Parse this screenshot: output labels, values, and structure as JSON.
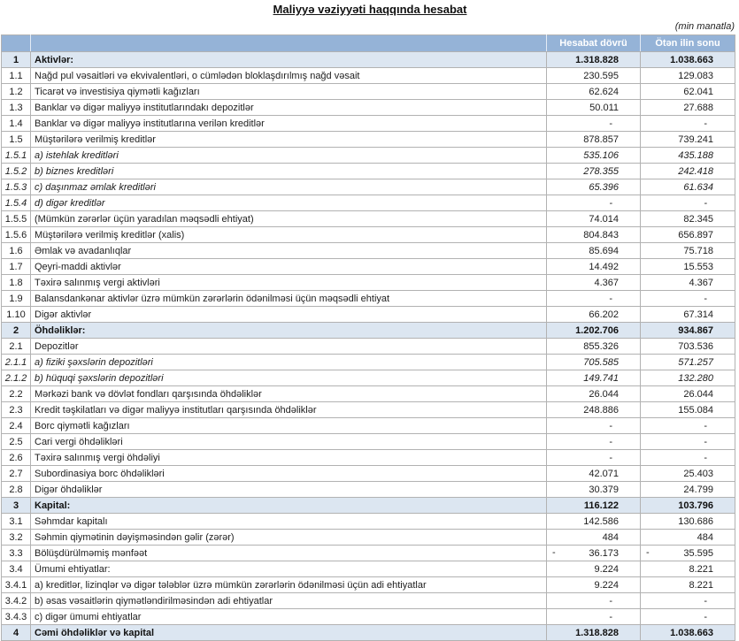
{
  "title": "Maliyyə vəziyyəti haqqında hesabat",
  "units_note": "(min manatla)",
  "colors": {
    "header_bg": "#95B3D7",
    "header_text": "#FFFFFF",
    "section_row_bg": "#DCE6F1",
    "grid_border": "#B2B2B2"
  },
  "table": {
    "columns": {
      "num_header": "",
      "label_header": "",
      "current": "Hesabat dövrü",
      "previous": "Ötən ilin sonu"
    },
    "rows": [
      {
        "num": "1",
        "label": "Aktivlər:",
        "current": "1.318.828",
        "previous": "1.038.663",
        "style": "section"
      },
      {
        "num": "1.1",
        "label": "Nağd pul vəsaitləri və  ekvivalentləri, o cümlədən bloklaşdırılmış nağd vəsait",
        "current": "230.595",
        "previous": "129.083",
        "style": "normal"
      },
      {
        "num": "1.2",
        "label": "Ticarət və investisiya qiymətli kağızları",
        "current": "62.624",
        "previous": "62.041",
        "style": "normal"
      },
      {
        "num": "1.3",
        "label": "Banklar və digər maliyyə institutlarındakı depozitlər",
        "current": "50.011",
        "previous": "27.688",
        "style": "normal"
      },
      {
        "num": "1.4",
        "label": "Banklar və digər maliyyə institutlarına verilən kreditlər",
        "current": "-",
        "previous": "-",
        "style": "normal"
      },
      {
        "num": "1.5",
        "label": "Müştərilərə verilmiş kreditlər",
        "current": "878.857",
        "previous": "739.241",
        "style": "normal"
      },
      {
        "num": "1.5.1",
        "label": "a) istehlak kreditləri",
        "current": "535.106",
        "previous": "435.188",
        "style": "italic"
      },
      {
        "num": "1.5.2",
        "label": "b) biznes kreditləri",
        "current": "278.355",
        "previous": "242.418",
        "style": "italic"
      },
      {
        "num": "1.5.3",
        "label": "c) daşınmaz əmlak kreditləri",
        "current": "65.396",
        "previous": "61.634",
        "style": "italic"
      },
      {
        "num": "1.5.4",
        "label": "d) digər kreditlər",
        "current": "-",
        "previous": "-",
        "style": "italic"
      },
      {
        "num": "1.5.5",
        "label": "(Mümkün zərərlər üçün yaradılan məqsədli ehtiyat)",
        "current": "74.014",
        "previous": "82.345",
        "style": "normal"
      },
      {
        "num": "1.5.6",
        "label": "Müştərilərə verilmiş kreditlər (xalis)",
        "current": "804.843",
        "previous": "656.897",
        "style": "normal"
      },
      {
        "num": "1.6",
        "label": "Əmlak və avadanlıqlar",
        "current": "85.694",
        "previous": "75.718",
        "style": "normal"
      },
      {
        "num": "1.7",
        "label": "Qeyri-maddi aktivlər",
        "current": "14.492",
        "previous": "15.553",
        "style": "normal"
      },
      {
        "num": "1.8",
        "label": "Təxirə salınmış vergi aktivləri",
        "current": "4.367",
        "previous": "4.367",
        "style": "normal"
      },
      {
        "num": "1.9",
        "label": "Balansdankənar aktivlər üzrə mümkün zərərlərin ödənilməsi üçün məqsədli ehtiyat",
        "current": "-",
        "previous": "-",
        "style": "normal"
      },
      {
        "num": "1.10",
        "label": "Digər aktivlər",
        "current": "66.202",
        "previous": "67.314",
        "style": "normal"
      },
      {
        "num": "2",
        "label": "Öhdəliklər:",
        "current": "1.202.706",
        "previous": "934.867",
        "style": "section"
      },
      {
        "num": "2.1",
        "label": "Depozitlər",
        "current": "855.326",
        "previous": "703.536",
        "style": "normal"
      },
      {
        "num": "2.1.1",
        "label": "a) fiziki şəxslərin depozitləri",
        "current": "705.585",
        "previous": "571.257",
        "style": "italic"
      },
      {
        "num": "2.1.2",
        "label": "b) hüquqi şəxslərin depozitləri",
        "current": "149.741",
        "previous": "132.280",
        "style": "italic"
      },
      {
        "num": "2.2",
        "label": "Mərkəzi bank və dövlət fondları qarşısında öhdəliklər",
        "current": "26.044",
        "previous": "26.044",
        "style": "normal"
      },
      {
        "num": "2.3",
        "label": "Kredit təşkilatları və digər maliyyə institutları qarşısında öhdəliklər",
        "current": "248.886",
        "previous": "155.084",
        "style": "normal"
      },
      {
        "num": "2.4",
        "label": "Borc qiymətli kağızları",
        "current": "-",
        "previous": "-",
        "style": "normal"
      },
      {
        "num": "2.5",
        "label": "Cari vergi öhdəlikləri",
        "current": "-",
        "previous": "-",
        "style": "normal"
      },
      {
        "num": "2.6",
        "label": "Təxirə salınmış vergi öhdəliyi",
        "current": "-",
        "previous": "-",
        "style": "normal"
      },
      {
        "num": "2.7",
        "label": "Subordinasiya borc öhdəlikləri",
        "current": "42.071",
        "previous": "25.403",
        "style": "normal"
      },
      {
        "num": "2.8",
        "label": "Digər öhdəliklər",
        "current": "30.379",
        "previous": "24.799",
        "style": "normal"
      },
      {
        "num": "3",
        "label": "Kapital:",
        "current": "116.122",
        "previous": "103.796",
        "style": "section"
      },
      {
        "num": "3.1",
        "label": "Səhmdar kapitalı",
        "current": "142.586",
        "previous": "130.686",
        "style": "normal"
      },
      {
        "num": "3.2",
        "label": "Səhmin qiymətinin dəyişməsindən gəlir (zərər)",
        "current": "484",
        "previous": "484",
        "style": "normal"
      },
      {
        "num": "3.3",
        "label": "Bölüşdürülməmiş mənfəət",
        "current": {
          "sign": "-",
          "amount": "36.173"
        },
        "previous": {
          "sign": "-",
          "amount": "35.595"
        },
        "style": "normal"
      },
      {
        "num": "3.4",
        "label": "Ümumi ehtiyatlar:",
        "current": "9.224",
        "previous": "8.221",
        "style": "normal"
      },
      {
        "num": "3.4.1",
        "label": "a) kreditlər, lizinqlər və digər tələblər üzrə mümkün zərərlərin ödənilməsi üçün adi ehtiyatlar",
        "current": "9.224",
        "previous": "8.221",
        "style": "normal"
      },
      {
        "num": "3.4.2",
        "label": "b) əsas vəsaitlərin qiymətləndirilməsindən adi ehtiyatlar",
        "current": "-",
        "previous": "-",
        "style": "normal"
      },
      {
        "num": "3.4.3",
        "label": "c) digər ümumi ehtiyatlar",
        "current": "-",
        "previous": "-",
        "style": "normal"
      },
      {
        "num": "4",
        "label": "Cəmi öhdəliklər və kapital",
        "current": "1.318.828",
        "previous": "1.038.663",
        "style": "section"
      }
    ]
  }
}
